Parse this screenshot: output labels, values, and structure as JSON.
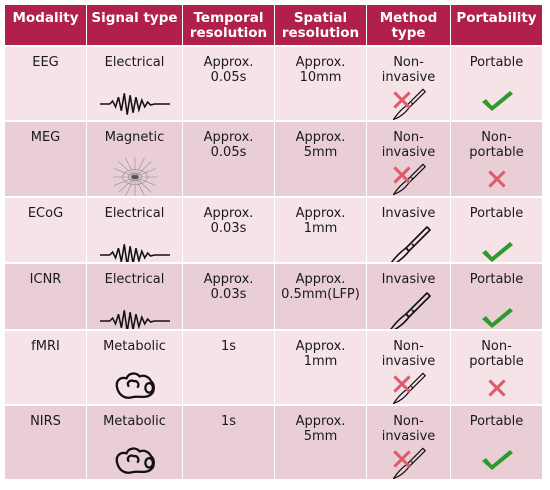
{
  "headers": {
    "modality": "Modality",
    "signal_type": "Signal type",
    "temporal_1": "Temporal",
    "temporal_2": "resolution",
    "spatial_1": "Spatial",
    "spatial_2": "resolution",
    "method_1": "Method",
    "method_2": "type",
    "portability": "Portability"
  },
  "rows": [
    {
      "modality": "EEG",
      "signal": "Electrical",
      "signal_icon": "wave-icon",
      "temporal_1": "Approx.",
      "temporal_2": "0.05s",
      "spatial_1": "Approx.",
      "spatial_2": "10mm",
      "method_1": "Non-",
      "method_2": "invasive",
      "method_icon": "scalpel-crossed-icon",
      "port_1": "Portable",
      "port_2": "",
      "port_icon": "check-icon"
    },
    {
      "modality": "MEG",
      "signal": "Magnetic",
      "signal_icon": "magnetic-field-icon",
      "temporal_1": "Approx.",
      "temporal_2": "0.05s",
      "spatial_1": "Approx.",
      "spatial_2": "5mm",
      "method_1": "Non-",
      "method_2": "invasive",
      "method_icon": "scalpel-crossed-icon",
      "port_1": "Non-",
      "port_2": "portable",
      "port_icon": "cross-icon"
    },
    {
      "modality": "ECoG",
      "signal": "Electrical",
      "signal_icon": "wave-icon",
      "temporal_1": "Approx.",
      "temporal_2": "0.03s",
      "spatial_1": "Approx.",
      "spatial_2": "1mm",
      "method_1": "Invasive",
      "method_2": "",
      "method_icon": "scalpel-icon",
      "port_1": "Portable",
      "port_2": "",
      "port_icon": "check-icon"
    },
    {
      "modality": "ICNR",
      "signal": "Electrical",
      "signal_icon": "wave-icon",
      "temporal_1": "Approx.",
      "temporal_2": "0.03s",
      "spatial_1": "Approx.",
      "spatial_2": "0.5mm(LFP)",
      "method_1": "Invasive",
      "method_2": "",
      "method_icon": "scalpel-icon",
      "port_1": "Portable",
      "port_2": "",
      "port_icon": "check-icon"
    },
    {
      "modality": "fMRI",
      "signal": "Metabolic",
      "signal_icon": "metabolic-icon",
      "temporal_1": "1s",
      "temporal_2": "",
      "spatial_1": "Approx.",
      "spatial_2": "1mm",
      "method_1": "Non-",
      "method_2": "invasive",
      "method_icon": "scalpel-crossed-icon",
      "port_1": "Non-",
      "port_2": "portable",
      "port_icon": "cross-icon"
    },
    {
      "modality": "NIRS",
      "signal": "Metabolic",
      "signal_icon": "metabolic-icon",
      "temporal_1": "1s",
      "temporal_2": "",
      "spatial_1": "Approx.",
      "spatial_2": "5mm",
      "method_1": "Non-",
      "method_2": "invasive",
      "method_icon": "scalpel-crossed-icon",
      "port_1": "Portable",
      "port_2": "",
      "port_icon": "check-icon"
    }
  ],
  "colors": {
    "header_bg": "#b0204a",
    "row_light": "#f5e3e7",
    "row_dark": "#e9cfd5",
    "check": "#2e9a2e",
    "cross": "#e05a6e"
  }
}
